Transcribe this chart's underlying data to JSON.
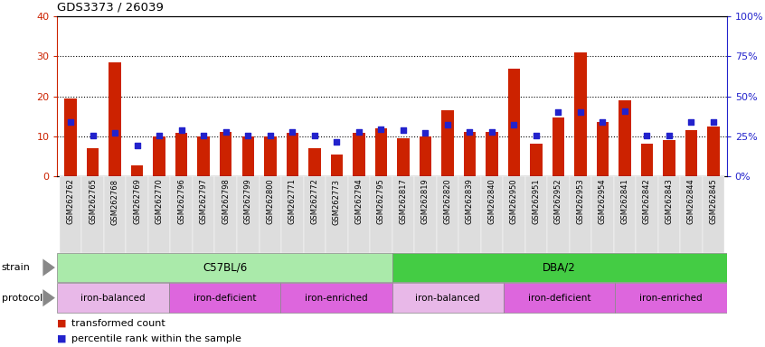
{
  "title": "GDS3373 / 26039",
  "samples": [
    "GSM262762",
    "GSM262765",
    "GSM262768",
    "GSM262769",
    "GSM262770",
    "GSM262796",
    "GSM262797",
    "GSM262798",
    "GSM262799",
    "GSM262800",
    "GSM262771",
    "GSM262772",
    "GSM262773",
    "GSM262794",
    "GSM262795",
    "GSM262817",
    "GSM262819",
    "GSM262820",
    "GSM262839",
    "GSM262840",
    "GSM262950",
    "GSM262951",
    "GSM262952",
    "GSM262953",
    "GSM262954",
    "GSM262841",
    "GSM262842",
    "GSM262843",
    "GSM262844",
    "GSM262845"
  ],
  "red_values": [
    19.5,
    7.0,
    28.5,
    2.8,
    10.0,
    10.8,
    10.0,
    11.0,
    10.0,
    10.0,
    10.8,
    7.0,
    5.5,
    10.8,
    12.0,
    9.5,
    10.0,
    16.5,
    11.0,
    11.0,
    27.0,
    8.2,
    14.8,
    31.0,
    13.5,
    19.0,
    8.2,
    9.0,
    11.5,
    12.5
  ],
  "blue_values": [
    13.5,
    10.2,
    10.8,
    7.8,
    10.2,
    11.5,
    10.2,
    11.2,
    10.2,
    10.2,
    11.0,
    10.2,
    8.5,
    11.0,
    11.8,
    11.5,
    10.8,
    12.8,
    11.2,
    11.2,
    13.0,
    10.2,
    16.0,
    16.0,
    13.5,
    16.2,
    10.2,
    10.2,
    13.5,
    13.5
  ],
  "strain_groups": [
    {
      "label": "C57BL/6",
      "start": 0,
      "end": 15,
      "color": "#aaeaaa"
    },
    {
      "label": "DBA/2",
      "start": 15,
      "end": 30,
      "color": "#44cc44"
    }
  ],
  "protocol_groups": [
    {
      "label": "iron-balanced",
      "start": 0,
      "end": 5
    },
    {
      "label": "iron-deficient",
      "start": 5,
      "end": 10
    },
    {
      "label": "iron-enriched",
      "start": 10,
      "end": 15
    },
    {
      "label": "iron-balanced",
      "start": 15,
      "end": 20
    },
    {
      "label": "iron-deficient",
      "start": 20,
      "end": 25
    },
    {
      "label": "iron-enriched",
      "start": 25,
      "end": 30
    }
  ],
  "protocol_colors": [
    "#e8b8e8",
    "#dd66dd",
    "#dd66dd",
    "#e8b8e8",
    "#dd66dd",
    "#dd66dd"
  ],
  "ylim_left": [
    0,
    40
  ],
  "ylim_right": [
    0,
    100
  ],
  "yticks_left": [
    0,
    10,
    20,
    30,
    40
  ],
  "yticks_right": [
    0,
    25,
    50,
    75,
    100
  ],
  "ytick_labels_right": [
    "0%",
    "25%",
    "50%",
    "75%",
    "100%"
  ],
  "bar_color": "#cc2200",
  "blue_color": "#2222cc",
  "grid_yticks": [
    10,
    20,
    30
  ],
  "legend_red": "transformed count",
  "legend_blue": "percentile rank within the sample",
  "bg_color": "#f0f0f0"
}
